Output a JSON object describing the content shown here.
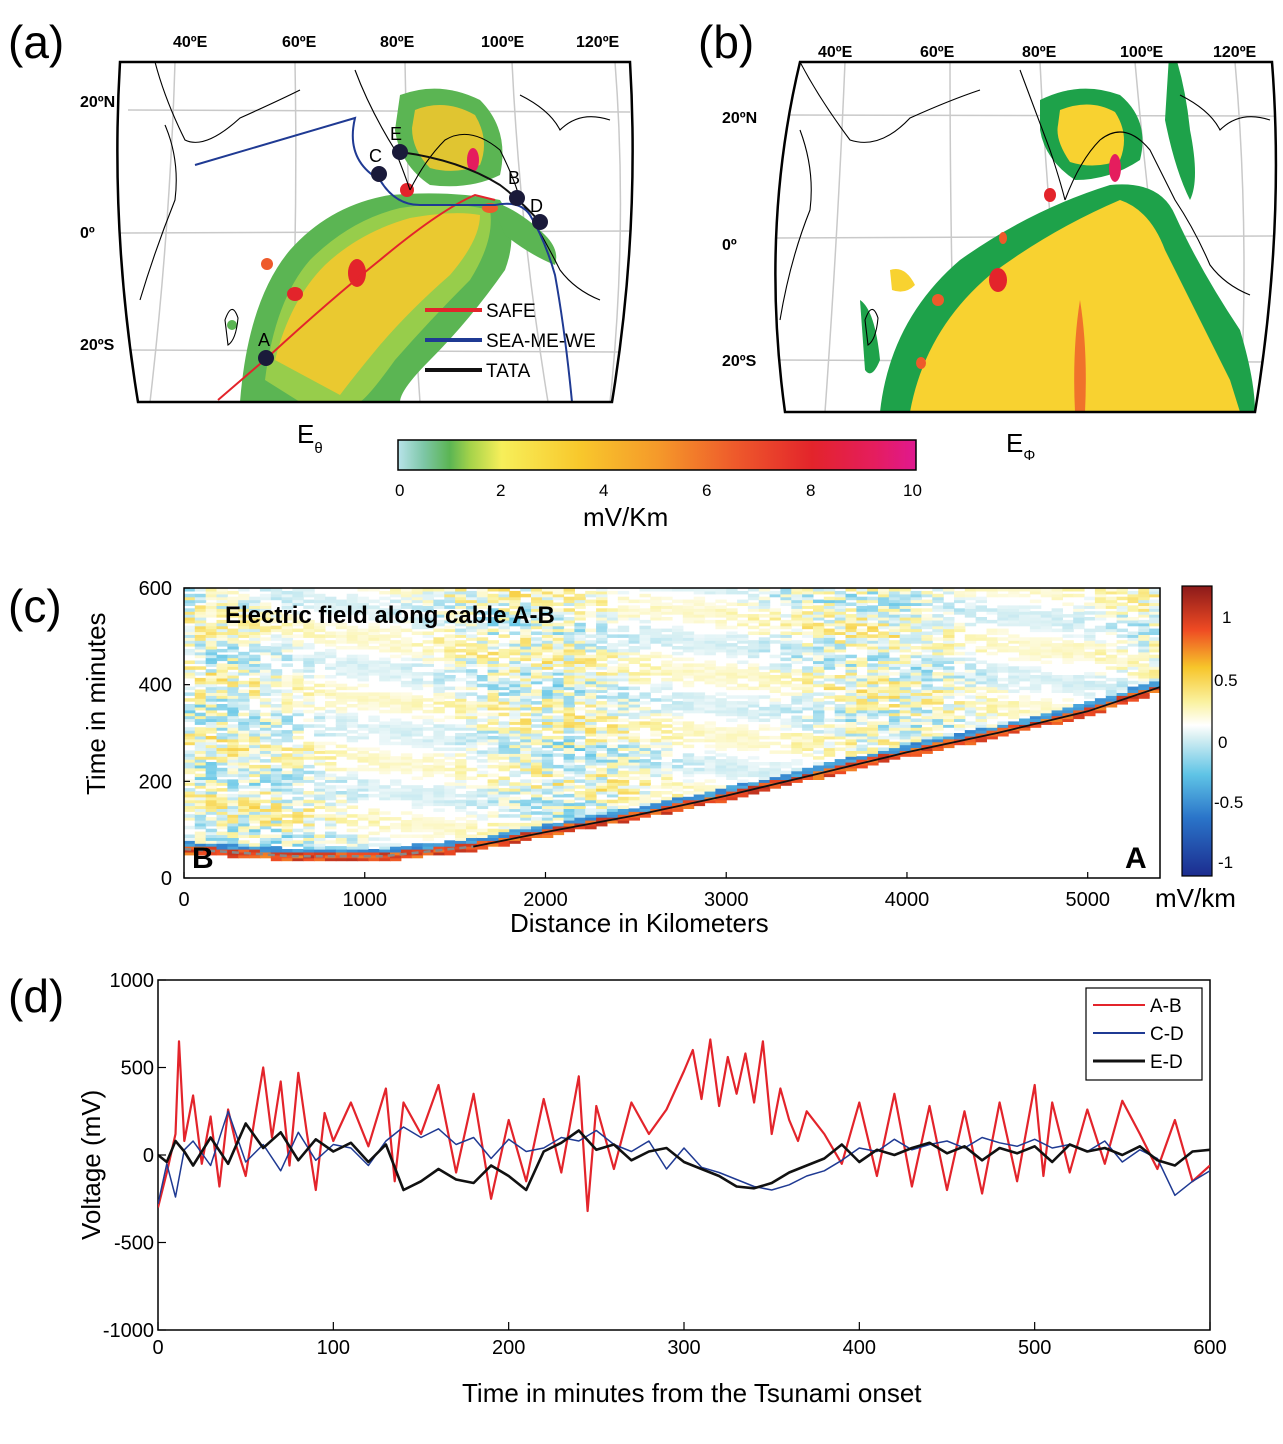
{
  "panels": {
    "a": {
      "tag": "(a)",
      "field_label": "E",
      "field_sub": "θ",
      "lon_labels": [
        "40ºE",
        "60ºE",
        "80ºE",
        "100ºE",
        "120ºE"
      ],
      "lat_labels": [
        "20ºN",
        "0º",
        "20ºS"
      ],
      "points": [
        "A",
        "B",
        "C",
        "D",
        "E"
      ],
      "cables": [
        {
          "name": "SAFE",
          "color": "#e3242b"
        },
        {
          "name": "SEA-ME-WE",
          "color": "#1f3a93"
        },
        {
          "name": "TATA",
          "color": "#111111"
        }
      ]
    },
    "b": {
      "tag": "(b)",
      "field_label": "E",
      "field_sub": "Φ",
      "lon_labels": [
        "40ºE",
        "60ºE",
        "80ºE",
        "100ºE",
        "120ºE"
      ],
      "lat_labels": [
        "20ºN",
        "0º",
        "20ºS"
      ]
    },
    "colorbar_ab": {
      "ticks": [
        "0",
        "2",
        "4",
        "6",
        "8",
        "10"
      ],
      "unit": "mV/Km"
    },
    "c": {
      "tag": "(c)",
      "title": "Electric field along cable A-B",
      "left_letter": "B",
      "right_letter": "A",
      "xlabel": "Distance in Kilometers",
      "ylabel": "Time in minutes",
      "x_ticks": [
        "0",
        "1000",
        "2000",
        "3000",
        "4000",
        "5000"
      ],
      "y_ticks": [
        "0",
        "200",
        "400",
        "600"
      ],
      "cb_ticks": [
        "1",
        "0.5",
        "0",
        "-0.5",
        "-1"
      ],
      "cb_unit": "mV/km"
    },
    "d": {
      "tag": "(d)"
    }
  },
  "chart_data": [
    {
      "type": "heatmap",
      "panel": "c",
      "title": "Electric field along cable A-B",
      "xlabel": "Distance in Kilometers",
      "ylabel": "Time in minutes",
      "xlim": [
        0,
        5400
      ],
      "ylim": [
        0,
        600
      ],
      "colorbar_range": [
        -1.2,
        1.2
      ],
      "colorbar_unit": "mV/km",
      "wavefront": {
        "distance_km": [
          0,
          600,
          1100,
          1600,
          2000,
          2500,
          3000,
          3500,
          4000,
          4500,
          5000,
          5400
        ],
        "time_min": [
          60,
          45,
          45,
          65,
          95,
          130,
          170,
          215,
          260,
          300,
          345,
          395
        ]
      }
    },
    {
      "type": "line",
      "panel": "d",
      "xlabel": "Time in minutes from the Tsunami onset",
      "ylabel": "Voltage (mV)",
      "xlim": [
        0,
        600
      ],
      "ylim": [
        -1000,
        1000
      ],
      "x_ticks": [
        0,
        100,
        200,
        300,
        400,
        500,
        600
      ],
      "y_ticks": [
        -1000,
        -500,
        0,
        500,
        1000
      ],
      "legend_position": "top-right",
      "series": [
        {
          "name": "A-B",
          "color": "#e3242b",
          "x": [
            0,
            5,
            10,
            12,
            15,
            20,
            25,
            30,
            35,
            40,
            45,
            50,
            55,
            60,
            65,
            70,
            75,
            80,
            85,
            90,
            95,
            100,
            110,
            120,
            130,
            135,
            140,
            150,
            160,
            170,
            180,
            190,
            200,
            210,
            220,
            230,
            240,
            245,
            250,
            260,
            270,
            280,
            290,
            300,
            305,
            310,
            315,
            320,
            325,
            330,
            335,
            340,
            345,
            350,
            355,
            360,
            365,
            370,
            380,
            390,
            400,
            410,
            420,
            430,
            440,
            450,
            460,
            470,
            480,
            490,
            500,
            505,
            510,
            520,
            530,
            540,
            550,
            560,
            570,
            580,
            590,
            600
          ],
          "y": [
            -300,
            -100,
            120,
            650,
            80,
            340,
            -50,
            220,
            -180,
            260,
            40,
            -120,
            200,
            500,
            100,
            420,
            -60,
            470,
            120,
            -200,
            240,
            80,
            300,
            50,
            380,
            -150,
            300,
            120,
            400,
            -100,
            350,
            -250,
            200,
            -150,
            320,
            -100,
            450,
            -320,
            280,
            -80,
            300,
            120,
            260,
            480,
            600,
            320,
            660,
            280,
            560,
            350,
            580,
            300,
            650,
            120,
            380,
            200,
            80,
            250,
            120,
            -50,
            300,
            -120,
            350,
            -180,
            280,
            -200,
            250,
            -220,
            300,
            -150,
            400,
            -120,
            300,
            -100,
            260,
            -50,
            310,
            120,
            -80,
            200,
            -150,
            -60
          ]
        },
        {
          "name": "C-D",
          "color": "#1f3a93",
          "x": [
            0,
            5,
            10,
            15,
            20,
            30,
            40,
            50,
            60,
            70,
            80,
            90,
            100,
            110,
            120,
            130,
            140,
            150,
            160,
            170,
            180,
            190,
            200,
            210,
            220,
            230,
            240,
            250,
            260,
            270,
            280,
            290,
            300,
            310,
            320,
            330,
            340,
            350,
            360,
            370,
            380,
            390,
            400,
            410,
            420,
            430,
            440,
            450,
            460,
            470,
            480,
            490,
            500,
            510,
            520,
            530,
            540,
            550,
            560,
            570,
            580,
            590,
            600
          ],
          "y": [
            -280,
            -50,
            -240,
            30,
            80,
            -60,
            250,
            -40,
            60,
            -90,
            130,
            -30,
            60,
            40,
            -60,
            80,
            160,
            100,
            150,
            60,
            100,
            -20,
            90,
            20,
            40,
            100,
            80,
            140,
            60,
            20,
            80,
            -80,
            40,
            -70,
            -100,
            -140,
            -180,
            -200,
            -170,
            -120,
            -90,
            -30,
            40,
            20,
            90,
            30,
            60,
            80,
            40,
            100,
            70,
            50,
            90,
            40,
            60,
            20,
            80,
            -40,
            30,
            -20,
            -230,
            -150,
            -90
          ]
        },
        {
          "name": "E-D",
          "color": "#111111",
          "x": [
            0,
            5,
            10,
            15,
            20,
            30,
            40,
            50,
            60,
            70,
            80,
            90,
            100,
            110,
            120,
            130,
            140,
            150,
            160,
            170,
            180,
            190,
            200,
            210,
            220,
            230,
            240,
            250,
            260,
            270,
            280,
            290,
            300,
            310,
            320,
            330,
            340,
            350,
            360,
            370,
            380,
            390,
            400,
            410,
            420,
            430,
            440,
            450,
            460,
            470,
            480,
            490,
            500,
            510,
            520,
            530,
            540,
            550,
            560,
            570,
            580,
            590,
            600
          ],
          "y": [
            0,
            -40,
            80,
            20,
            -60,
            100,
            -50,
            180,
            40,
            130,
            -30,
            90,
            20,
            70,
            -40,
            60,
            -200,
            -150,
            -80,
            -140,
            -160,
            -60,
            -120,
            -200,
            20,
            70,
            140,
            30,
            60,
            -30,
            20,
            40,
            -40,
            -80,
            -120,
            -180,
            -190,
            -160,
            -100,
            -60,
            -20,
            60,
            -40,
            30,
            0,
            40,
            70,
            10,
            50,
            -30,
            40,
            10,
            50,
            -40,
            60,
            20,
            40,
            0,
            50,
            -30,
            -60,
            20,
            30
          ]
        }
      ]
    }
  ]
}
